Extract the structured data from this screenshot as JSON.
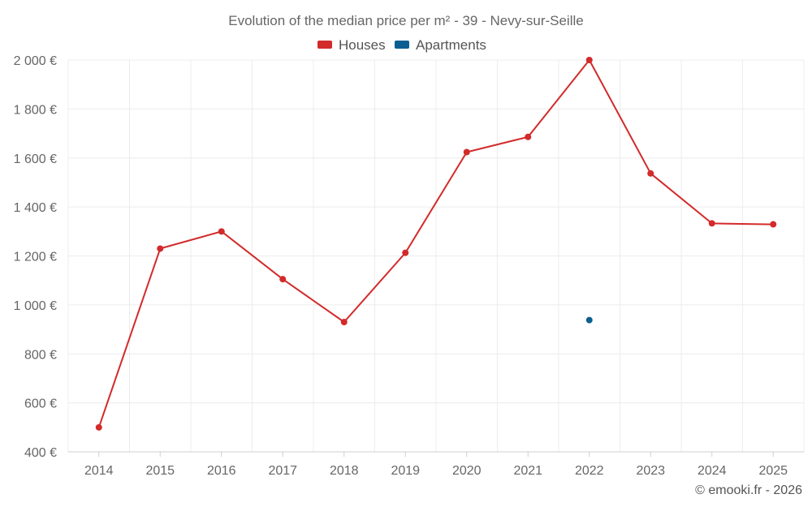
{
  "chart_data": {
    "type": "line",
    "title": "Evolution of the median price per m² - 39 - Nevy-sur-Seille",
    "categories": [
      "2014",
      "2015",
      "2016",
      "2017",
      "2018",
      "2019",
      "2020",
      "2021",
      "2022",
      "2023",
      "2024",
      "2025"
    ],
    "ylim": [
      400,
      2000
    ],
    "yticks": [
      400,
      600,
      800,
      1000,
      1200,
      1400,
      1600,
      1800,
      2000
    ],
    "ytick_labels": [
      "400 €",
      "600 €",
      "800 €",
      "1 000 €",
      "1 200 €",
      "1 400 €",
      "1 600 €",
      "1 800 €",
      "2 000 €"
    ],
    "grid": true,
    "legend_position": "top-center",
    "series": [
      {
        "name": "Houses",
        "color": "#d32a2a",
        "values": [
          500,
          1230,
          1300,
          1105,
          930,
          1213,
          1624,
          1686,
          2000,
          1537,
          1333,
          1329
        ]
      },
      {
        "name": "Apartments",
        "color": "#0b5e91",
        "values": [
          null,
          null,
          null,
          null,
          null,
          null,
          null,
          null,
          938,
          null,
          null,
          null
        ]
      }
    ]
  },
  "footer": "© emooki.fr - 2026"
}
